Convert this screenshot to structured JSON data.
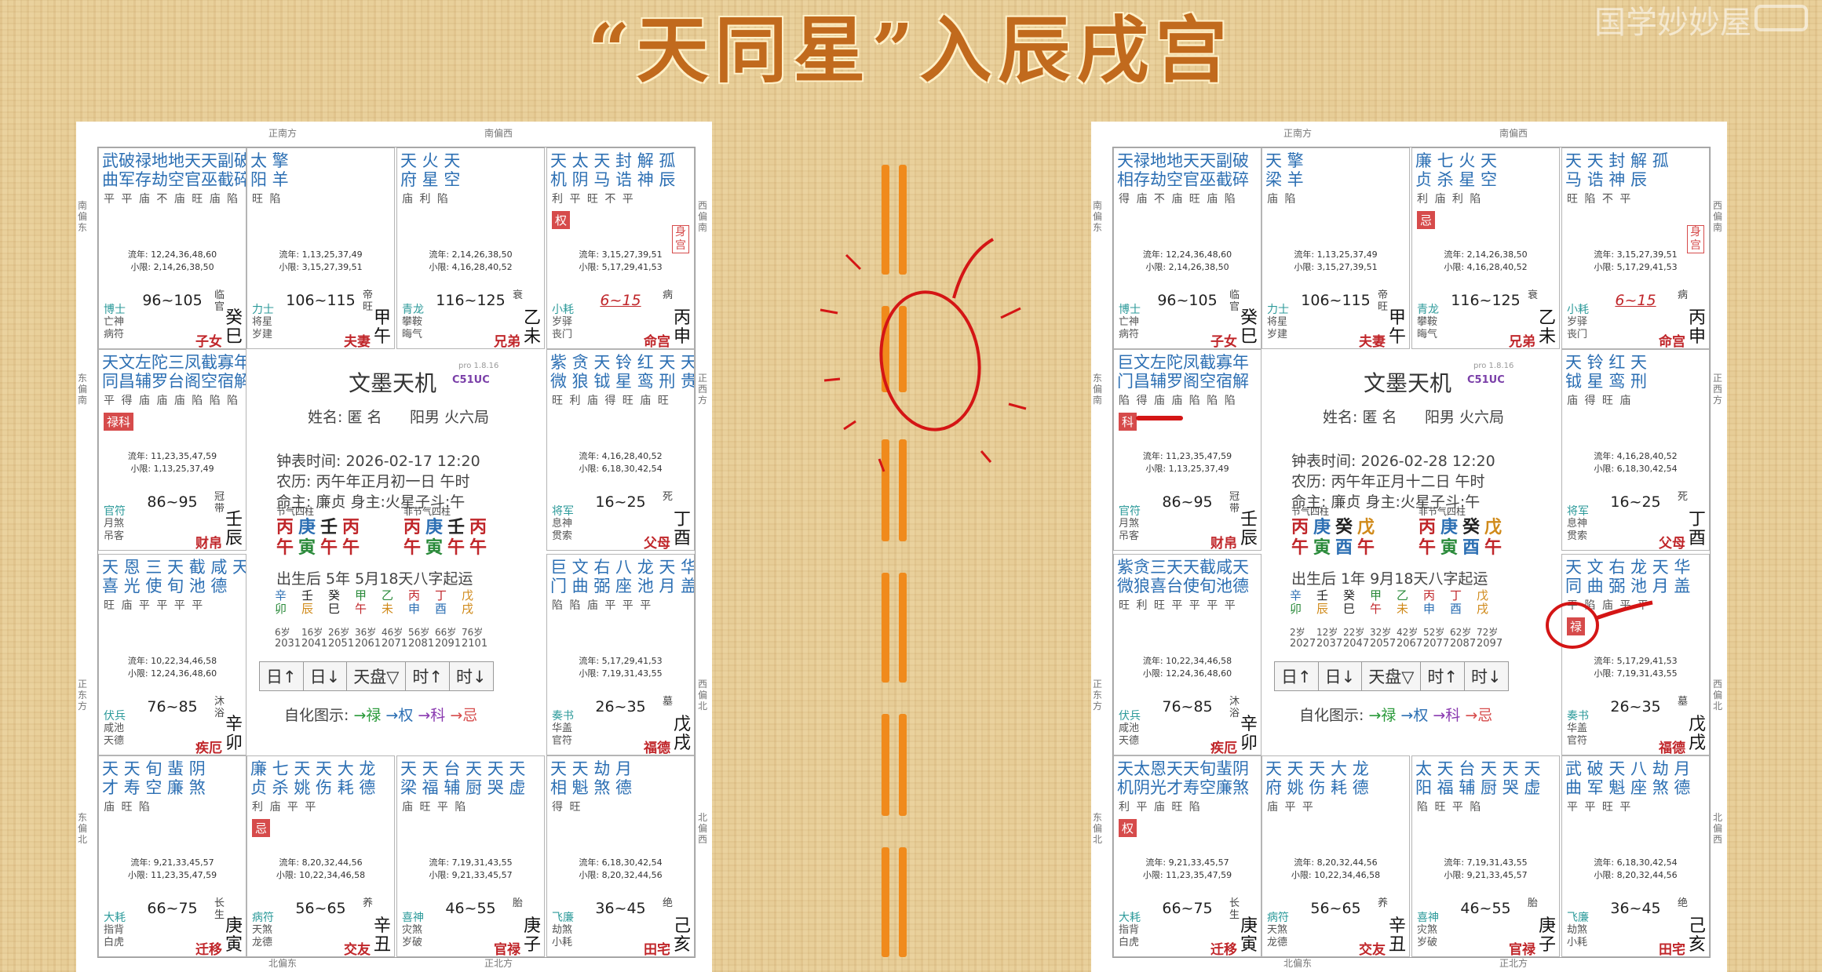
{
  "title": "“天同星”入辰戌宫",
  "watermark": "国学妙妙屋",
  "center_common": {
    "name_label": "姓名: 匿 名",
    "gender": "阳男 火六局",
    "ming_label": "命主: 廉贞 身主:火星子斗:午",
    "pillars_label_a": "节气四柱",
    "pillars_label_b": "非节气四柱",
    "huatu": [
      "自化图示:",
      "→禄",
      "→权",
      "→科",
      "→忌"
    ],
    "buttons": [
      "日↑",
      "日↓",
      "天盘▽",
      "时↑",
      "时↓"
    ],
    "app": "文墨天机",
    "app_ver": "pro 1.8.16",
    "app_code": "C51UC"
  },
  "directions": {
    "top_left": "正南方",
    "top_right": "南偏西",
    "bottom_left": "北偏东",
    "bottom_right": "正北方",
    "left_1": "南偏东",
    "left_2": "东偏南",
    "left_3": "正东方",
    "left_4": "东偏北",
    "right_1": "西偏南",
    "right_2": "正西方",
    "right_3": "西偏北",
    "right_4": "北偏西"
  },
  "left": {
    "time": "钟表时间: 2026-02-17 12:20",
    "lunar": "农历: 丙午年正月初一日 午时",
    "birth": "出生后 5年 5月18天八字起运",
    "pillars_a": [
      [
        "丙",
        "午"
      ],
      [
        "庚",
        "寅"
      ],
      [
        "壬",
        "午"
      ],
      [
        "丙",
        "午"
      ]
    ],
    "pillars_b": [
      [
        "丙",
        "午"
      ],
      [
        "庚",
        "寅"
      ],
      [
        "壬",
        "午"
      ],
      [
        "丙",
        "午"
      ]
    ],
    "dayun": [
      [
        "辛",
        "卯"
      ],
      [
        "壬",
        "辰"
      ],
      [
        "癸",
        "巳"
      ],
      [
        "甲",
        "午"
      ],
      [
        "乙",
        "未"
      ],
      [
        "丙",
        "申"
      ],
      [
        "丁",
        "酉"
      ],
      [
        "戊",
        "戌"
      ]
    ],
    "ages": [
      "6岁",
      "16岁",
      "26岁",
      "36岁",
      "46岁",
      "56岁",
      "66岁",
      "76岁"
    ],
    "years": [
      "2031",
      "2041",
      "2051",
      "2061",
      "2071",
      "2081",
      "2091",
      "2101"
    ],
    "palaces": [
      {
        "stars": "武破禄地地天天副破",
        "stars2": "曲军存劫空官巫截碎",
        "bright": "平 平 庙 不 庙 旺  庙 陷",
        "flow1": "流年: 12,24,36,48,60",
        "flow2": "小限: 2,14,26,38,50",
        "range": "96~105",
        "lst": "临官",
        "gz": "癸巳",
        "sm": [
          "博士",
          "亡神",
          "病符"
        ],
        "pn": "子女"
      },
      {
        "stars": "太 擎",
        "stars2": "阳 羊",
        "bright": "旺 陷",
        "flow1": "流年: 1,13,25,37,49",
        "flow2": "小限: 3,15,27,39,51",
        "range": "106~115",
        "lst": "帝旺",
        "gz": "甲午",
        "sm": [
          "力士",
          "将星",
          "岁建"
        ],
        "pn": "夫妻"
      },
      {
        "stars": "天 火 天",
        "stars2": "府 星 空",
        "bright": "庙 利 陷",
        "flow1": "流年: 2,14,26,38,50",
        "flow2": "小限: 4,16,28,40,52",
        "range": "116~125",
        "lst": "衰",
        "gz": "乙未",
        "sm": [
          "青龙",
          "攀鞍",
          "晦气"
        ],
        "pn": "兄弟"
      },
      {
        "stars": "天 太 天 封 解 孤",
        "stars2": "机 阴 马 诰 神 辰",
        "bright": "利 平 旺     不 平",
        "hua": "权",
        "shen": "身宫",
        "flow1": "流年: 3,15,27,39,51",
        "flow2": "小限: 5,17,29,41,53",
        "range": "6~15",
        "ital": true,
        "lst": "病",
        "gz": "丙申",
        "sm": [
          "小耗",
          "岁驿",
          "丧门"
        ],
        "pn": "命宫"
      },
      {
        "stars": "天文左陀三凤截寡年",
        "stars2": "同昌辅罗台阁空宿解",
        "bright": "平 得 庙 庙 庙 陷 陷 陷",
        "hua": "禄科",
        "flow1": "流年: 11,23,35,47,59",
        "flow2": "小限: 1,13,25,37,49",
        "range": "86~95",
        "lst": "冠带",
        "gz": "壬辰",
        "sm": [
          "官符",
          "月煞",
          "吊客"
        ],
        "pn": "财帛"
      },
      {
        "stars": "紫 贪 天 铃 红 天 天",
        "stars2": "微 狼 钺 星 鸾 刑 贵",
        "bright": "旺 利 庙 得 旺 庙 旺",
        "flow1": "流年: 4,16,28,40,52",
        "flow2": "小限: 6,18,30,42,54",
        "range": "16~25",
        "lst": "死",
        "gz": "丁酉",
        "sm": [
          "将军",
          "息神",
          "贯索"
        ],
        "pn": "父母"
      },
      {
        "stars": "天 恩 三 天 截 咸 天",
        "stars2": "喜 光 使 旬 池 德",
        "bright": "旺 庙 平 平 平 平",
        "flow1": "流年: 10,22,34,46,58",
        "flow2": "小限: 12,24,36,48,60",
        "range": "76~85",
        "lst": "沐浴",
        "gz": "辛卯",
        "sm": [
          "伏兵",
          "咸池",
          "天德"
        ],
        "pn": "疾厄"
      },
      {
        "stars": "巨 文 右 八 龙 天 华",
        "stars2": "门 曲 弼 座 池 月 盖",
        "bright": "陷 陷 庙 平 平   平",
        "flow1": "流年: 5,17,29,41,53",
        "flow2": "小限: 7,19,31,43,55",
        "range": "26~35",
        "lst": "墓",
        "gz": "戊戌",
        "sm": [
          "奏书",
          "华盖",
          "官符"
        ],
        "pn": "福德"
      },
      {
        "stars": "天 天 旬 蜚 阴",
        "stars2": "才 寿 空 廉 煞",
        "bright": "庙 旺 陷",
        "flow1": "流年: 9,21,33,45,57",
        "flow2": "小限: 11,23,35,47,59",
        "range": "66~75",
        "lst": "长生",
        "gz": "庚寅",
        "sm": [
          "大耗",
          "指背",
          "白虎"
        ],
        "pn": "迁移"
      },
      {
        "stars": "廉 七 天 天 大 龙",
        "stars2": "贞 杀 姚 伤 耗 德",
        "bright": "利 庙 平 平",
        "hua": "忌",
        "flow1": "流年: 8,20,32,44,56",
        "flow2": "小限: 10,22,34,46,58",
        "range": "56~65",
        "lst": "养",
        "gz": "辛丑",
        "sm": [
          "病符",
          "天煞",
          "龙德"
        ],
        "pn": "交友"
      },
      {
        "stars": "天 天 台 天 天 天",
        "stars2": "梁 福 辅 厨 哭 虚",
        "bright": "庙 旺       平 陷",
        "flow1": "流年: 7,19,31,43,55",
        "flow2": "小限: 9,21,33,45,57",
        "range": "46~55",
        "lst": "胎",
        "gz": "庚子",
        "sm": [
          "喜神",
          "灾煞",
          "岁破"
        ],
        "pn": "官禄"
      },
      {
        "stars": "天 天 劫 月",
        "stars2": "相 魁 煞 德",
        "bright": "得 旺",
        "flow1": "流年: 6,18,30,42,54",
        "flow2": "小限: 8,20,32,44,56",
        "range": "36~45",
        "lst": "绝",
        "gz": "己亥",
        "sm": [
          "飞廉",
          "劫煞",
          "小耗"
        ],
        "pn": "田宅"
      }
    ]
  },
  "right": {
    "time": "钟表时间: 2026-02-28 12:20",
    "lunar": "农历: 丙午年正月十二日 午时",
    "birth": "出生后 1年 9月18天八字起运",
    "pillars_a": [
      [
        "丙",
        "午"
      ],
      [
        "庚",
        "寅"
      ],
      [
        "癸",
        "酉"
      ],
      [
        "戊",
        "午"
      ]
    ],
    "pillars_b": [
      [
        "丙",
        "午"
      ],
      [
        "庚",
        "寅"
      ],
      [
        "癸",
        "酉"
      ],
      [
        "戊",
        "午"
      ]
    ],
    "dayun": [
      [
        "辛",
        "卯"
      ],
      [
        "壬",
        "辰"
      ],
      [
        "癸",
        "巳"
      ],
      [
        "甲",
        "午"
      ],
      [
        "乙",
        "未"
      ],
      [
        "丙",
        "申"
      ],
      [
        "丁",
        "酉"
      ],
      [
        "戊",
        "戌"
      ]
    ],
    "ages": [
      "2岁",
      "12岁",
      "22岁",
      "32岁",
      "42岁",
      "52岁",
      "62岁",
      "72岁"
    ],
    "years": [
      "2027",
      "2037",
      "2047",
      "2057",
      "2067",
      "2077",
      "2087",
      "2097"
    ],
    "palaces": [
      {
        "stars": "天禄地地天天副破",
        "stars2": "相存劫空官巫截碎",
        "bright": "得 庙 不 庙 旺  庙 陷",
        "flow1": "流年: 12,24,36,48,60",
        "flow2": "小限: 2,14,26,38,50",
        "range": "96~105",
        "lst": "临官",
        "gz": "癸巳",
        "sm": [
          "博士",
          "亡神",
          "病符"
        ],
        "pn": "子女"
      },
      {
        "stars": "天 擎",
        "stars2": "梁 羊",
        "bright": "庙 陷",
        "flow1": "流年: 1,13,25,37,49",
        "flow2": "小限: 3,15,27,39,51",
        "range": "106~115",
        "lst": "帝旺",
        "gz": "甲午",
        "sm": [
          "力士",
          "将星",
          "岁建"
        ],
        "pn": "夫妻"
      },
      {
        "stars": "廉 七 火 天",
        "stars2": "贞 杀 星 空",
        "bright": "利 庙 利 陷",
        "hua": "忌",
        "flow1": "流年: 2,14,26,38,50",
        "flow2": "小限: 4,16,28,40,52",
        "range": "116~125",
        "lst": "衰",
        "gz": "乙未",
        "sm": [
          "青龙",
          "攀鞍",
          "晦气"
        ],
        "pn": "兄弟"
      },
      {
        "stars": "天 天 封 解 孤",
        "stars2": "马 诰 神 辰",
        "bright": "旺 陷     不 平",
        "shen": "身宫",
        "flow1": "流年: 3,15,27,39,51",
        "flow2": "小限: 5,17,29,41,53",
        "range": "6~15",
        "ital": true,
        "lst": "病",
        "gz": "丙申",
        "sm": [
          "小耗",
          "岁驿",
          "丧门"
        ],
        "pn": "命宫"
      },
      {
        "stars": "巨文左陀凤截寡年",
        "stars2": "门昌辅罗阁空宿解",
        "bright": "陷 得 庙 庙 陷 陷 陷",
        "hua": "科",
        "flow1": "流年: 11,23,35,47,59",
        "flow2": "小限: 1,13,25,37,49",
        "range": "86~95",
        "lst": "冠带",
        "gz": "壬辰",
        "sm": [
          "官符",
          "月煞",
          "吊客"
        ],
        "pn": "财帛"
      },
      {
        "stars": "天 铃 红 天",
        "stars2": "钺 星 鸾 刑",
        "bright": "庙 得 旺 庙",
        "flow1": "流年: 4,16,28,40,52",
        "flow2": "小限: 6,18,30,42,54",
        "range": "16~25",
        "lst": "死",
        "gz": "丁酉",
        "sm": [
          "将军",
          "息神",
          "贯索"
        ],
        "pn": "父母"
      },
      {
        "stars": "紫贪三天天截咸天",
        "stars2": "微狼喜台使旬池德",
        "bright": "旺 利 旺 平 平 平 平",
        "flow1": "流年: 10,22,34,46,58",
        "flow2": "小限: 12,24,36,48,60",
        "range": "76~85",
        "lst": "沐浴",
        "gz": "辛卯",
        "sm": [
          "伏兵",
          "咸池",
          "天德"
        ],
        "pn": "疾厄"
      },
      {
        "stars": "天 文 右 龙 天 华",
        "stars2": "同 曲 弼 池 月 盖",
        "bright": "平 陷 庙 平   平",
        "hua": "禄",
        "flow1": "流年: 5,17,29,41,53",
        "flow2": "小限: 7,19,31,43,55",
        "range": "26~35",
        "lst": "墓",
        "gz": "戊戌",
        "sm": [
          "奏书",
          "华盖",
          "官符"
        ],
        "pn": "福德"
      },
      {
        "stars": "天太恩天天旬蜚阴",
        "stars2": "机阴光才寿空廉煞",
        "bright": "利 平 庙 旺 陷",
        "hua": "权",
        "flow1": "流年: 9,21,33,45,57",
        "flow2": "小限: 11,23,35,47,59",
        "range": "66~75",
        "lst": "长生",
        "gz": "庚寅",
        "sm": [
          "大耗",
          "指背",
          "白虎"
        ],
        "pn": "迁移"
      },
      {
        "stars": "天 天 天 大 龙",
        "stars2": "府 姚 伤 耗 德",
        "bright": "庙 平 平",
        "flow1": "流年: 8,20,32,44,56",
        "flow2": "小限: 10,22,34,46,58",
        "range": "56~65",
        "lst": "养",
        "gz": "辛丑",
        "sm": [
          "病符",
          "天煞",
          "龙德"
        ],
        "pn": "交友"
      },
      {
        "stars": "太 天 台 天 天 天",
        "stars2": "阳 福 辅 厨 哭 虚",
        "bright": "陷 旺       平 陷",
        "flow1": "流年: 7,19,31,43,55",
        "flow2": "小限: 9,21,33,45,57",
        "range": "46~55",
        "lst": "胎",
        "gz": "庚子",
        "sm": [
          "喜神",
          "灾煞",
          "岁破"
        ],
        "pn": "官禄"
      },
      {
        "stars": "武 破 天 八 劫 月",
        "stars2": "曲 军 魁 座 煞 德",
        "bright": "平 平 旺 平",
        "flow1": "流年: 6,18,30,42,54",
        "flow2": "小限: 8,20,32,44,56",
        "range": "36~45",
        "lst": "绝",
        "gz": "己亥",
        "sm": [
          "飞廉",
          "劫煞",
          "小耗"
        ],
        "pn": "田宅"
      }
    ]
  }
}
